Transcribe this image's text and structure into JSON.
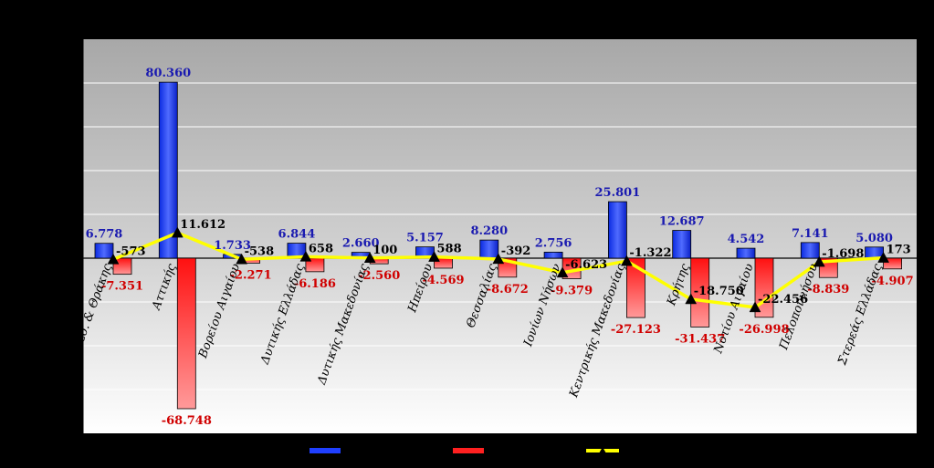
{
  "chart_data": {
    "type": "bar",
    "categories": [
      "Αν. Μακεδ. & Θράκης",
      "Αττικής",
      "Βορείου Αιγαίου",
      "Δυτικής Ελλάδας",
      "Δυτικής Μακεδονίας",
      "Ηπείρου",
      "Θεσσαλίας",
      "Ιονίων Νήσων",
      "Κεντρικής Μακεδονίας",
      "Κρήτης",
      "Νοτίου Αιγαίου",
      "Πελοποννήσου",
      "Στερεάς Ελλάδας"
    ],
    "series": [
      {
        "kind": "bar",
        "color": "#1f3fff",
        "values": [
          6778,
          80360,
          1733,
          6844,
          2660,
          5157,
          8280,
          2756,
          25801,
          12687,
          4542,
          7141,
          5080
        ],
        "labels": [
          "6.778",
          "80.360",
          "1.733",
          "6.844",
          "2.660",
          "5.157",
          "8.280",
          "2.756",
          "25.801",
          "12.687",
          "4.542",
          "7.141",
          "5.080"
        ]
      },
      {
        "kind": "bar",
        "color": "#ff2020",
        "values": [
          -7351,
          -68748,
          -2271,
          -6186,
          -2560,
          -4569,
          -8672,
          -9379,
          -27123,
          -31437,
          -26998,
          -8839,
          -4907
        ],
        "labels": [
          "-7.351",
          "-68.748",
          "-2.271",
          "-6.186",
          "-2.560",
          "-4.569",
          "-8.672",
          "-9.379",
          "-27.123",
          "-31.437",
          "-26.998",
          "-8.839",
          "-4.907"
        ]
      },
      {
        "kind": "line",
        "color": "#ffff00",
        "values": [
          -573,
          11612,
          -538,
          658,
          100,
          588,
          -392,
          -6623,
          -1322,
          -18750,
          -22456,
          -1698,
          173
        ],
        "labels": [
          "-573",
          "11.612",
          "-538",
          "658",
          "100",
          "588",
          "-392",
          "-6.623",
          "-1.322",
          "-18.750",
          "-22.456",
          "-1.698",
          "173"
        ]
      }
    ],
    "ylim": [
      -80000,
      100000
    ],
    "y_grid_step": 20000,
    "grid": true,
    "legend_position": "bottom",
    "title": "",
    "xlabel": "",
    "ylabel": ""
  }
}
